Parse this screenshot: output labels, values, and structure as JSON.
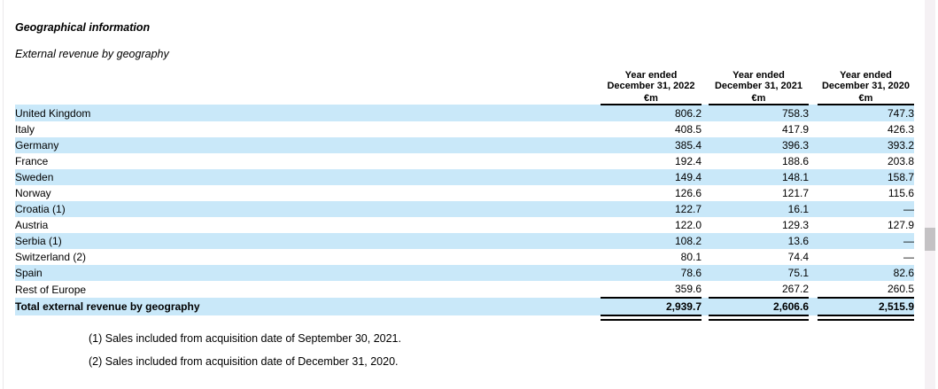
{
  "document": {
    "title": "Geographical information",
    "subtitle": "External revenue by geography"
  },
  "table": {
    "column_headers": [
      {
        "period": "Year ended",
        "date": "December 31, 2022",
        "unit": "€m"
      },
      {
        "period": "Year ended",
        "date": "December 31, 2021",
        "unit": "€m"
      },
      {
        "period": "Year ended",
        "date": "December 31, 2020",
        "unit": "€m"
      }
    ],
    "rows": [
      {
        "label": "United Kingdom",
        "values": [
          "806.2",
          "758.3",
          "747.3"
        ]
      },
      {
        "label": "Italy",
        "values": [
          "408.5",
          "417.9",
          "426.3"
        ]
      },
      {
        "label": "Germany",
        "values": [
          "385.4",
          "396.3",
          "393.2"
        ]
      },
      {
        "label": "France",
        "values": [
          "192.4",
          "188.6",
          "203.8"
        ]
      },
      {
        "label": "Sweden",
        "values": [
          "149.4",
          "148.1",
          "158.7"
        ]
      },
      {
        "label": "Norway",
        "values": [
          "126.6",
          "121.7",
          "115.6"
        ]
      },
      {
        "label": "Croatia (1)",
        "values": [
          "122.7",
          "16.1",
          "—"
        ]
      },
      {
        "label": "Austria",
        "values": [
          "122.0",
          "129.3",
          "127.9"
        ]
      },
      {
        "label": "Serbia (1)",
        "values": [
          "108.2",
          "13.6",
          "—"
        ]
      },
      {
        "label": "Switzerland (2)",
        "values": [
          "80.1",
          "74.4",
          "—"
        ]
      },
      {
        "label": "Spain",
        "values": [
          "78.6",
          "75.1",
          "82.6"
        ]
      },
      {
        "label": "Rest of Europe",
        "values": [
          "359.6",
          "267.2",
          "260.5"
        ]
      }
    ],
    "total_row": {
      "label": "Total external revenue by geography",
      "values": [
        "2,939.7",
        "2,606.6",
        "2,515.9"
      ]
    }
  },
  "footnotes": [
    "(1) Sales included from acquisition date of September 30, 2021.",
    "(2) Sales included from acquisition date of December 31, 2020."
  ],
  "colors": {
    "stripe": "#c9e8f9",
    "scrollbar_track": "#f5f1f4",
    "scrollbar_thumb": "#c4c2c4"
  }
}
